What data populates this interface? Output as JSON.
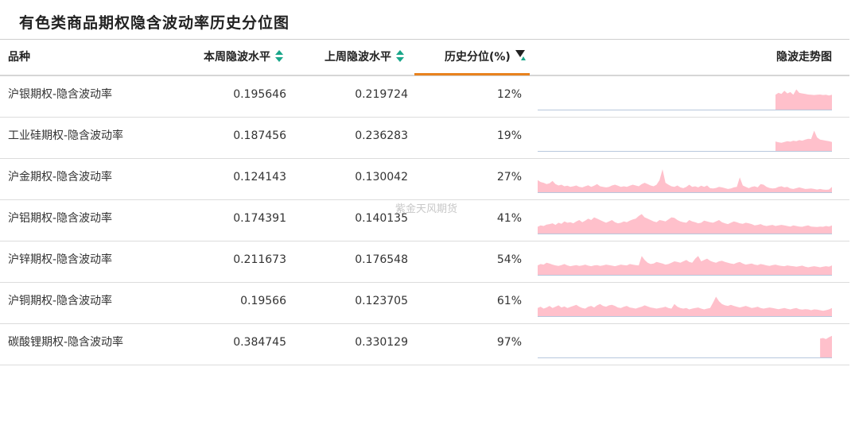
{
  "title": "有色类商品期权隐含波动率历史分位图",
  "watermark": "紫金天风期货",
  "headers": {
    "name": "品种",
    "current": "本周隐波水平",
    "previous": "上周隐波水平",
    "percentile": "历史分位(%)",
    "trend": "隐波走势图"
  },
  "colors": {
    "accent": "#e8821e",
    "sort_icon": "#1aa68a",
    "sparkline_fill": "#ffc0cb",
    "sparkline_baseline": "#b7c7dd"
  },
  "icons": {
    "sort": "sort-updown-icon",
    "filter": "filter-icon"
  },
  "rows": [
    {
      "name": "沪银期权-隐含波动率",
      "current": "0.195646",
      "previous": "0.219724",
      "percentile": "12%",
      "spark": [
        0,
        0,
        0,
        0,
        0,
        0,
        0,
        0,
        0,
        0,
        0,
        0,
        0,
        0,
        0,
        0,
        0,
        0,
        0,
        0,
        0,
        0,
        0,
        0,
        0,
        0,
        0,
        0,
        0,
        0,
        0,
        0,
        0,
        0,
        0,
        0,
        0,
        0,
        0,
        0,
        0,
        0,
        0,
        0,
        0,
        0,
        0,
        0,
        0,
        0,
        0,
        0,
        0,
        0,
        0,
        0,
        0,
        0,
        0,
        0,
        0,
        0,
        0,
        0,
        0,
        0,
        0,
        0,
        0,
        0,
        0,
        0,
        0,
        0,
        0,
        0,
        0,
        0,
        0,
        0,
        0.55,
        0.62,
        0.58,
        0.7,
        0.6,
        0.65,
        0.55,
        0.75,
        0.62,
        0.6,
        0.58,
        0.56,
        0.55,
        0.54,
        0.55,
        0.56,
        0.54,
        0.55,
        0.52,
        0.55
      ]
    },
    {
      "name": "工业硅期权-隐含波动率",
      "current": "0.187456",
      "previous": "0.236283",
      "percentile": "19%",
      "spark": [
        0,
        0,
        0,
        0,
        0,
        0,
        0,
        0,
        0,
        0,
        0,
        0,
        0,
        0,
        0,
        0,
        0,
        0,
        0,
        0,
        0,
        0,
        0,
        0,
        0,
        0,
        0,
        0,
        0,
        0,
        0,
        0,
        0,
        0,
        0,
        0,
        0,
        0,
        0,
        0,
        0,
        0,
        0,
        0,
        0,
        0,
        0,
        0,
        0,
        0,
        0,
        0,
        0,
        0,
        0,
        0,
        0,
        0,
        0,
        0,
        0,
        0,
        0,
        0,
        0,
        0,
        0,
        0,
        0,
        0,
        0,
        0,
        0,
        0,
        0,
        0,
        0,
        0,
        0,
        0,
        0.35,
        0.32,
        0.3,
        0.33,
        0.36,
        0.34,
        0.38,
        0.36,
        0.4,
        0.38,
        0.42,
        0.45,
        0.44,
        0.75,
        0.5,
        0.42,
        0.4,
        0.38,
        0.36,
        0.33
      ]
    },
    {
      "name": "沪金期权-隐含波动率",
      "current": "0.124143",
      "previous": "0.130042",
      "percentile": "27%",
      "spark": [
        0.45,
        0.38,
        0.35,
        0.3,
        0.33,
        0.42,
        0.3,
        0.25,
        0.28,
        0.22,
        0.24,
        0.2,
        0.22,
        0.25,
        0.2,
        0.18,
        0.22,
        0.26,
        0.2,
        0.24,
        0.3,
        0.22,
        0.2,
        0.18,
        0.2,
        0.25,
        0.28,
        0.24,
        0.2,
        0.22,
        0.2,
        0.24,
        0.28,
        0.25,
        0.22,
        0.3,
        0.35,
        0.3,
        0.25,
        0.22,
        0.28,
        0.45,
        0.85,
        0.35,
        0.28,
        0.22,
        0.2,
        0.25,
        0.18,
        0.15,
        0.2,
        0.28,
        0.2,
        0.22,
        0.18,
        0.24,
        0.2,
        0.25,
        0.15,
        0.14,
        0.16,
        0.2,
        0.18,
        0.15,
        0.12,
        0.14,
        0.18,
        0.2,
        0.55,
        0.25,
        0.2,
        0.15,
        0.2,
        0.22,
        0.18,
        0.3,
        0.28,
        0.2,
        0.16,
        0.14,
        0.15,
        0.2,
        0.22,
        0.18,
        0.2,
        0.14,
        0.12,
        0.15,
        0.18,
        0.15,
        0.12,
        0.13,
        0.14,
        0.12,
        0.1,
        0.12,
        0.1,
        0.09,
        0.1,
        0.2
      ]
    },
    {
      "name": "沪铝期权-隐含波动率",
      "current": "0.174391",
      "previous": "0.140135",
      "percentile": "41%",
      "spark": [
        0.25,
        0.3,
        0.28,
        0.33,
        0.35,
        0.38,
        0.32,
        0.4,
        0.36,
        0.45,
        0.4,
        0.42,
        0.38,
        0.45,
        0.5,
        0.42,
        0.48,
        0.55,
        0.5,
        0.6,
        0.55,
        0.5,
        0.45,
        0.4,
        0.45,
        0.5,
        0.42,
        0.38,
        0.4,
        0.45,
        0.42,
        0.48,
        0.52,
        0.55,
        0.65,
        0.72,
        0.6,
        0.55,
        0.5,
        0.45,
        0.42,
        0.5,
        0.48,
        0.45,
        0.52,
        0.6,
        0.58,
        0.5,
        0.45,
        0.42,
        0.4,
        0.5,
        0.45,
        0.42,
        0.38,
        0.4,
        0.48,
        0.45,
        0.42,
        0.4,
        0.45,
        0.5,
        0.42,
        0.38,
        0.35,
        0.4,
        0.45,
        0.42,
        0.38,
        0.36,
        0.4,
        0.38,
        0.35,
        0.3,
        0.32,
        0.35,
        0.3,
        0.28,
        0.3,
        0.32,
        0.28,
        0.3,
        0.32,
        0.3,
        0.28,
        0.26,
        0.3,
        0.28,
        0.26,
        0.25,
        0.28,
        0.3,
        0.26,
        0.25,
        0.24,
        0.26,
        0.25,
        0.28,
        0.26,
        0.3
      ]
    },
    {
      "name": "沪锌期权-隐含波动率",
      "current": "0.211673",
      "previous": "0.176548",
      "percentile": "54%",
      "spark": [
        0.35,
        0.4,
        0.38,
        0.45,
        0.42,
        0.38,
        0.35,
        0.33,
        0.36,
        0.4,
        0.35,
        0.32,
        0.34,
        0.36,
        0.33,
        0.35,
        0.38,
        0.34,
        0.32,
        0.35,
        0.36,
        0.33,
        0.35,
        0.38,
        0.36,
        0.34,
        0.32,
        0.35,
        0.38,
        0.36,
        0.35,
        0.4,
        0.38,
        0.36,
        0.35,
        0.7,
        0.55,
        0.45,
        0.4,
        0.42,
        0.48,
        0.45,
        0.42,
        0.38,
        0.4,
        0.45,
        0.5,
        0.48,
        0.45,
        0.5,
        0.55,
        0.48,
        0.45,
        0.6,
        0.7,
        0.5,
        0.55,
        0.6,
        0.52,
        0.48,
        0.45,
        0.5,
        0.52,
        0.48,
        0.45,
        0.42,
        0.4,
        0.45,
        0.48,
        0.42,
        0.38,
        0.4,
        0.42,
        0.38,
        0.36,
        0.4,
        0.38,
        0.35,
        0.33,
        0.36,
        0.38,
        0.35,
        0.33,
        0.32,
        0.35,
        0.33,
        0.32,
        0.3,
        0.32,
        0.34,
        0.3,
        0.28,
        0.3,
        0.32,
        0.3,
        0.28,
        0.3,
        0.32,
        0.3,
        0.35
      ]
    },
    {
      "name": "沪铜期权-隐含波动率",
      "current": "0.19566",
      "previous": "0.123705",
      "percentile": "61%",
      "spark": [
        0.3,
        0.35,
        0.28,
        0.32,
        0.38,
        0.3,
        0.35,
        0.4,
        0.32,
        0.36,
        0.3,
        0.34,
        0.38,
        0.42,
        0.35,
        0.3,
        0.28,
        0.35,
        0.38,
        0.32,
        0.4,
        0.45,
        0.38,
        0.35,
        0.4,
        0.42,
        0.38,
        0.32,
        0.3,
        0.35,
        0.38,
        0.32,
        0.3,
        0.28,
        0.32,
        0.35,
        0.4,
        0.36,
        0.32,
        0.3,
        0.28,
        0.3,
        0.32,
        0.35,
        0.3,
        0.28,
        0.45,
        0.35,
        0.3,
        0.28,
        0.3,
        0.25,
        0.28,
        0.3,
        0.32,
        0.28,
        0.25,
        0.28,
        0.3,
        0.5,
        0.72,
        0.55,
        0.45,
        0.4,
        0.38,
        0.42,
        0.38,
        0.35,
        0.32,
        0.35,
        0.38,
        0.34,
        0.3,
        0.32,
        0.35,
        0.3,
        0.28,
        0.3,
        0.32,
        0.3,
        0.28,
        0.26,
        0.28,
        0.3,
        0.27,
        0.25,
        0.28,
        0.3,
        0.26,
        0.24,
        0.26,
        0.25,
        0.22,
        0.25,
        0.24,
        0.22,
        0.2,
        0.22,
        0.25,
        0.3
      ]
    },
    {
      "name": "碳酸锂期权-隐含波动率",
      "current": "0.384745",
      "previous": "0.330129",
      "percentile": "97%",
      "spark": [
        0,
        0,
        0,
        0,
        0,
        0,
        0,
        0,
        0,
        0,
        0,
        0,
        0,
        0,
        0,
        0,
        0,
        0,
        0,
        0,
        0,
        0,
        0,
        0,
        0,
        0,
        0,
        0,
        0,
        0,
        0,
        0,
        0,
        0,
        0,
        0,
        0,
        0,
        0,
        0,
        0,
        0,
        0,
        0,
        0,
        0,
        0,
        0,
        0,
        0,
        0,
        0,
        0,
        0,
        0,
        0,
        0,
        0,
        0,
        0,
        0,
        0,
        0,
        0,
        0,
        0,
        0,
        0,
        0,
        0,
        0,
        0,
        0,
        0,
        0,
        0,
        0,
        0,
        0,
        0,
        0,
        0,
        0,
        0,
        0,
        0,
        0,
        0,
        0,
        0,
        0,
        0,
        0,
        0,
        0,
        0.7,
        0.72,
        0.68,
        0.75,
        0.8
      ]
    }
  ]
}
